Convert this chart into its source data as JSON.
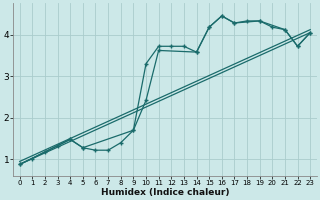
{
  "xlabel": "Humidex (Indice chaleur)",
  "background_color": "#cce8e8",
  "grid_color": "#aacccc",
  "line_color": "#1a6b6b",
  "xlim": [
    -0.5,
    23.5
  ],
  "ylim": [
    0.6,
    4.75
  ],
  "xticks": [
    0,
    1,
    2,
    3,
    4,
    5,
    6,
    7,
    8,
    9,
    10,
    11,
    12,
    13,
    14,
    15,
    16,
    17,
    18,
    19,
    20,
    21,
    22,
    23
  ],
  "yticks": [
    1,
    2,
    3,
    4
  ],
  "curve1_x": [
    0,
    1,
    2,
    3,
    4,
    5,
    6,
    7,
    8,
    9,
    10,
    11,
    12,
    13,
    14,
    15,
    16,
    17,
    18,
    19,
    20,
    21,
    22,
    23
  ],
  "curve1_y": [
    0.88,
    1.02,
    1.18,
    1.33,
    1.48,
    1.28,
    1.22,
    1.22,
    1.4,
    1.7,
    3.3,
    3.72,
    3.72,
    3.72,
    3.58,
    4.18,
    4.45,
    4.28,
    4.33,
    4.33,
    4.18,
    4.12,
    3.72,
    4.05
  ],
  "curve2_x": [
    0,
    4,
    5,
    9,
    10,
    11,
    14,
    15,
    16,
    17,
    19,
    21,
    22,
    23
  ],
  "curve2_y": [
    0.88,
    1.48,
    1.28,
    1.7,
    2.42,
    3.62,
    3.58,
    4.18,
    4.45,
    4.28,
    4.33,
    4.12,
    3.72,
    4.05
  ],
  "line1_x": [
    0,
    23
  ],
  "line1_y": [
    0.88,
    4.05
  ],
  "line2_x": [
    0,
    23
  ],
  "line2_y": [
    0.95,
    4.12
  ]
}
